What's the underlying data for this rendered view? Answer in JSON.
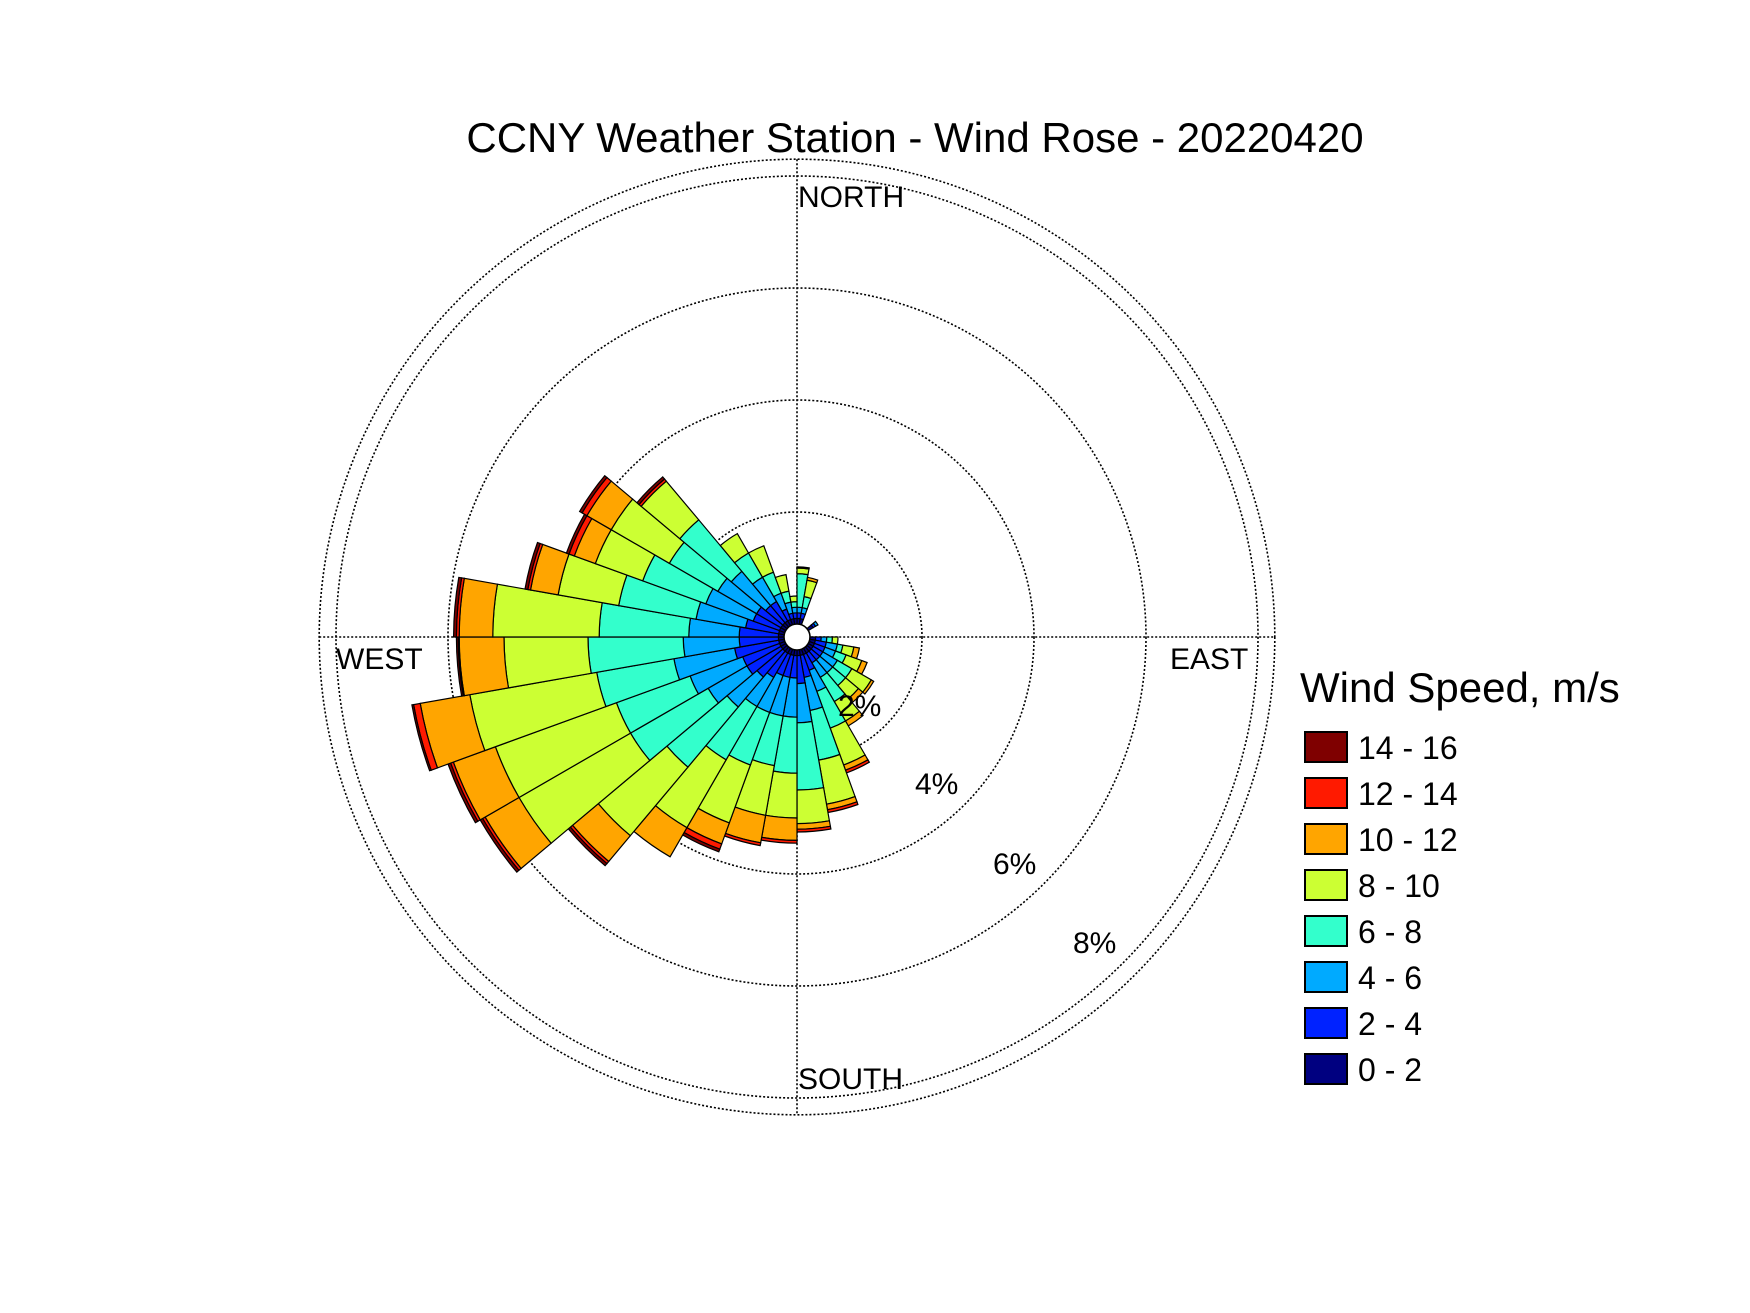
{
  "chart_data": {
    "type": "wind_rose",
    "title": "CCNY Weather Station - Wind Rose - 20220420",
    "cardinal_labels": {
      "north": "NORTH",
      "south": "SOUTH",
      "east": "EAST",
      "west": "WEST"
    },
    "ring_values": [
      2,
      4,
      6,
      8
    ],
    "ring_labels": [
      "2%",
      "4%",
      "6%",
      "8%"
    ],
    "r_max_percent": 8.3,
    "grid": true,
    "legend": {
      "title": "Wind Speed, m/s",
      "placement": "right",
      "bins": [
        {
          "label": "14 - 16",
          "color": "#7f0000"
        },
        {
          "label": "12 - 14",
          "color": "#ff1a00"
        },
        {
          "label": "10 - 12",
          "color": "#ffa500"
        },
        {
          "label": "8 - 10",
          "color": "#ccff33"
        },
        {
          "label": "6 - 8",
          "color": "#33ffcc"
        },
        {
          "label": "4 - 6",
          "color": "#00aaff"
        },
        {
          "label": "2 - 4",
          "color": "#0022ff"
        },
        {
          "label": "0 - 2",
          "color": "#000080"
        }
      ]
    },
    "bin_order_inner_to_outer": [
      "0 - 2",
      "2 - 4",
      "4 - 6",
      "6 - 8",
      "8 - 10",
      "10 - 12",
      "12 - 14",
      "14 - 16"
    ],
    "sector_width_deg": 10,
    "sectors": [
      {
        "direction_deg": 5,
        "cumulative_percent": [
          0.1,
          0.2,
          0.3,
          0.9,
          1.0,
          1.02,
          1.02,
          1.02
        ]
      },
      {
        "direction_deg": 15,
        "cumulative_percent": [
          0.1,
          0.2,
          0.3,
          0.5,
          0.8,
          0.85,
          0.85,
          0.85
        ]
      },
      {
        "direction_deg": 55,
        "cumulative_percent": [
          0.1,
          0.15,
          0.2,
          0.2,
          0.2,
          0.2,
          0.2,
          0.2
        ]
      },
      {
        "direction_deg": 95,
        "cumulative_percent": [
          0.1,
          0.2,
          0.3,
          0.4,
          0.5,
          0.5,
          0.5,
          0.5
        ]
      },
      {
        "direction_deg": 105,
        "cumulative_percent": [
          0.1,
          0.3,
          0.5,
          0.6,
          0.8,
          0.9,
          0.9,
          0.9
        ]
      },
      {
        "direction_deg": 115,
        "cumulative_percent": [
          0.1,
          0.3,
          0.5,
          0.7,
          1.0,
          1.1,
          1.1,
          1.1
        ]
      },
      {
        "direction_deg": 125,
        "cumulative_percent": [
          0.1,
          0.3,
          0.6,
          0.9,
          1.3,
          1.35,
          1.35,
          1.35
        ]
      },
      {
        "direction_deg": 135,
        "cumulative_percent": [
          0.1,
          0.3,
          0.6,
          0.9,
          1.2,
          1.3,
          1.3,
          1.3
        ]
      },
      {
        "direction_deg": 145,
        "cumulative_percent": [
          0.1,
          0.3,
          0.6,
          1.1,
          1.5,
          1.6,
          1.6,
          1.6
        ]
      },
      {
        "direction_deg": 155,
        "cumulative_percent": [
          0.1,
          0.4,
          0.8,
          1.5,
          2.2,
          2.3,
          2.35,
          2.35
        ]
      },
      {
        "direction_deg": 165,
        "cumulative_percent": [
          0.1,
          0.5,
          1.1,
          2.0,
          2.8,
          2.9,
          2.95,
          2.95
        ]
      },
      {
        "direction_deg": 175,
        "cumulative_percent": [
          0.1,
          0.6,
          1.3,
          2.5,
          3.1,
          3.2,
          3.25,
          3.25
        ]
      },
      {
        "direction_deg": 185,
        "cumulative_percent": [
          0.1,
          0.5,
          1.2,
          2.2,
          3.0,
          3.4,
          3.45,
          3.45
        ]
      },
      {
        "direction_deg": 195,
        "cumulative_percent": [
          0.1,
          0.5,
          1.2,
          2.1,
          3.0,
          3.5,
          3.55,
          3.55
        ]
      },
      {
        "direction_deg": 205,
        "cumulative_percent": [
          0.1,
          0.5,
          1.2,
          2.2,
          3.3,
          3.7,
          3.8,
          3.85
        ]
      },
      {
        "direction_deg": 215,
        "cumulative_percent": [
          0.1,
          0.6,
          1.2,
          2.3,
          3.7,
          4.3,
          4.3,
          4.3
        ]
      },
      {
        "direction_deg": 225,
        "cumulative_percent": [
          0.1,
          0.7,
          1.4,
          2.8,
          4.4,
          5.0,
          5.05,
          5.1
        ]
      },
      {
        "direction_deg": 235,
        "cumulative_percent": [
          0.1,
          0.8,
          1.6,
          3.2,
          5.5,
          6.2,
          6.25,
          6.3
        ]
      },
      {
        "direction_deg": 245,
        "cumulative_percent": [
          0.1,
          0.8,
          1.8,
          3.2,
          5.5,
          6.3,
          6.35,
          6.4
        ]
      },
      {
        "direction_deg": 255,
        "cumulative_percent": [
          0.1,
          0.9,
          2.0,
          3.4,
          5.7,
          6.6,
          6.72,
          6.75
        ]
      },
      {
        "direction_deg": 265,
        "cumulative_percent": [
          0.1,
          0.8,
          1.8,
          3.5,
          5.0,
          5.8,
          5.82,
          5.85
        ]
      },
      {
        "direction_deg": 275,
        "cumulative_percent": [
          0.1,
          0.8,
          1.7,
          3.3,
          5.2,
          5.8,
          5.85,
          5.9
        ]
      },
      {
        "direction_deg": 285,
        "cumulative_percent": [
          0.1,
          0.7,
          1.6,
          3.0,
          4.1,
          4.6,
          4.65,
          4.7
        ]
      },
      {
        "direction_deg": 295,
        "cumulative_percent": [
          0.1,
          0.6,
          1.5,
          2.7,
          3.6,
          4.0,
          4.1,
          4.15
        ]
      },
      {
        "direction_deg": 305,
        "cumulative_percent": [
          0.1,
          0.6,
          1.4,
          2.4,
          3.6,
          4.1,
          4.2,
          4.25
        ]
      },
      {
        "direction_deg": 315,
        "cumulative_percent": [
          0.1,
          0.5,
          1.3,
          2.5,
          3.4,
          3.4,
          3.45,
          3.5
        ]
      },
      {
        "direction_deg": 325,
        "cumulative_percent": [
          0.1,
          0.5,
          1.0,
          1.5,
          1.9,
          1.9,
          1.9,
          1.9
        ]
      },
      {
        "direction_deg": 335,
        "cumulative_percent": [
          0.1,
          0.3,
          0.6,
          1.0,
          1.5,
          1.5,
          1.5,
          1.5
        ]
      },
      {
        "direction_deg": 345,
        "cumulative_percent": [
          0.1,
          0.2,
          0.4,
          0.6,
          0.9,
          0.9,
          0.9,
          0.9
        ]
      },
      {
        "direction_deg": 355,
        "cumulative_percent": [
          0.1,
          0.2,
          0.3,
          0.4,
          0.5,
          0.5,
          0.5,
          0.5
        ]
      }
    ]
  }
}
